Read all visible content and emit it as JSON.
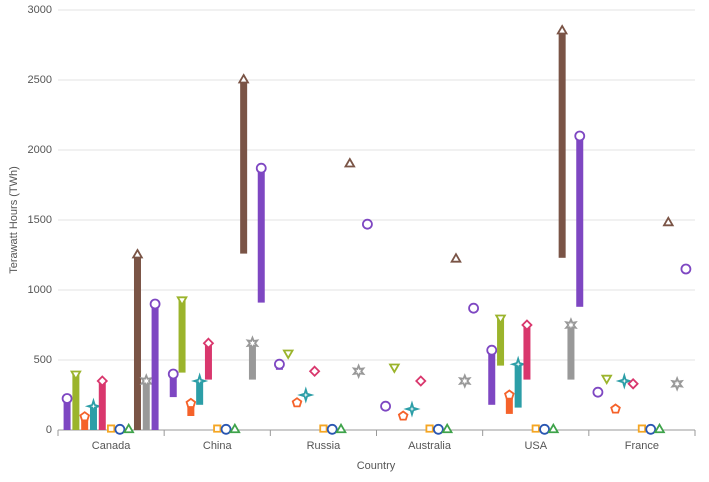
{
  "chart_data": {
    "type": "range-column",
    "x_label": "Country",
    "y_label": "Terawatt Hours (TWh)",
    "categories": [
      "Canada",
      "China",
      "Russia",
      "Australia",
      "USA",
      "France"
    ],
    "ylim": [
      0,
      3000
    ],
    "yticks": [
      0,
      500,
      1000,
      1500,
      2000,
      2500,
      3000
    ],
    "grid": true,
    "series": [
      {
        "color": "#7e47c2",
        "marker": "circle",
        "low": [
          0,
          235,
          430,
          170,
          180,
          270
        ],
        "values": [
          225,
          400,
          470,
          170,
          570,
          270
        ]
      },
      {
        "color": "#9bb42c",
        "marker": "triangle-down",
        "low": [
          0,
          410,
          550,
          450,
          460,
          370
        ],
        "values": [
          400,
          930,
          550,
          450,
          800,
          370
        ]
      },
      {
        "color": "#f5622a",
        "marker": "pentagon",
        "low": [
          0,
          100,
          195,
          100,
          115,
          150
        ],
        "values": [
          95,
          190,
          195,
          100,
          250,
          150
        ]
      },
      {
        "color": "#2c9ea7",
        "marker": "star4",
        "low": [
          0,
          180,
          250,
          150,
          160,
          350
        ],
        "values": [
          170,
          350,
          250,
          150,
          470,
          350
        ]
      },
      {
        "color": "#d9376d",
        "marker": "diamond",
        "low": [
          0,
          360,
          420,
          350,
          360,
          330
        ],
        "values": [
          350,
          620,
          420,
          350,
          750,
          330
        ]
      },
      {
        "color": "#f5a623",
        "marker": "square",
        "low": [
          10,
          10,
          10,
          10,
          10,
          10
        ],
        "values": [
          10,
          10,
          10,
          10,
          10,
          10
        ]
      },
      {
        "color": "#2956b2",
        "marker": "circle",
        "low": [
          5,
          5,
          5,
          5,
          5,
          5
        ],
        "values": [
          5,
          5,
          5,
          5,
          5,
          5
        ]
      },
      {
        "color": "#3ea34a",
        "marker": "triangle-up",
        "low": [
          2,
          2,
          2,
          2,
          2,
          2
        ],
        "values": [
          2,
          2,
          2,
          2,
          2,
          2
        ]
      },
      {
        "color": "#7a5446",
        "marker": "triangle-up",
        "low": [
          0,
          1260,
          1900,
          1220,
          1230,
          1480
        ],
        "values": [
          1250,
          2500,
          1900,
          1220,
          2850,
          1480
        ]
      },
      {
        "color": "#999999",
        "marker": "star6",
        "low": [
          0,
          360,
          420,
          350,
          360,
          330
        ],
        "values": [
          350,
          620,
          420,
          350,
          750,
          330
        ]
      },
      {
        "color": "#7e47c2",
        "marker": "circle",
        "low": [
          0,
          910,
          1470,
          870,
          880,
          1150
        ],
        "values": [
          900,
          1870,
          1470,
          870,
          2100,
          1150
        ]
      }
    ]
  }
}
